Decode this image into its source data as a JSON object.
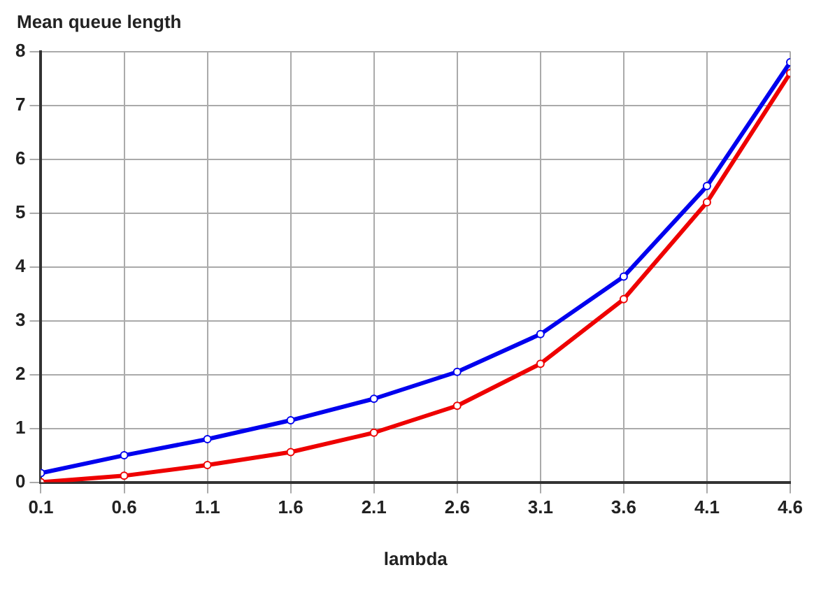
{
  "chart_data": {
    "type": "line",
    "ylabel": "Mean queue length",
    "xlabel": "lambda",
    "x": [
      0.1,
      0.6,
      1.1,
      1.6,
      2.1,
      2.6,
      3.1,
      3.6,
      4.1,
      4.6
    ],
    "series": [
      {
        "color": "#0000ee",
        "values": [
          0.17,
          0.5,
          0.8,
          1.15,
          1.55,
          2.05,
          2.75,
          3.82,
          5.5,
          7.8
        ]
      },
      {
        "color": "#ee0000",
        "values": [
          0.0,
          0.12,
          0.32,
          0.56,
          0.92,
          1.42,
          2.2,
          3.4,
          5.2,
          7.6
        ]
      }
    ],
    "xlim": [
      0.1,
      4.6
    ],
    "xticks": [
      0.1,
      0.6,
      1.1,
      1.6,
      2.1,
      2.6,
      3.1,
      3.6,
      4.1,
      4.6
    ],
    "ylim": [
      0,
      8
    ],
    "yticks": [
      0,
      1,
      2,
      3,
      4,
      5,
      6,
      7,
      8
    ],
    "grid": true,
    "marker": "circle",
    "line_style": "solid",
    "legend": false
  }
}
